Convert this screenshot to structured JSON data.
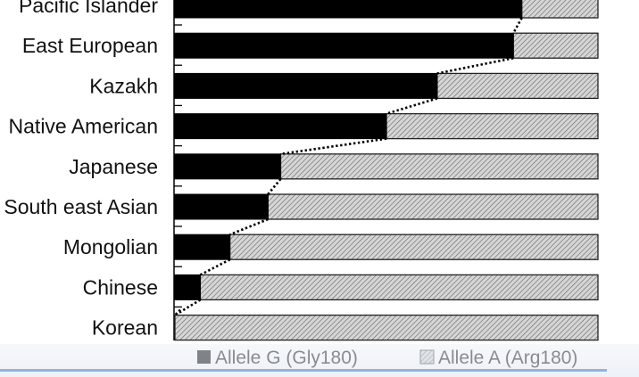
{
  "chart_data": {
    "type": "bar",
    "orientation": "horizontal",
    "stacked": true,
    "percent_stacked": true,
    "categories": [
      "Pacific Islander",
      "East European",
      "Kazakh",
      "Native American",
      "Japanese",
      "South east Asian",
      "Mongolian",
      "Chinese",
      "Korean"
    ],
    "series": [
      {
        "name": "Allele G (Gly180)",
        "values": [
          82,
          80,
          62,
          50,
          25,
          22,
          13,
          6,
          0
        ],
        "color": "#000000",
        "pattern": "solid"
      },
      {
        "name": "Allele A (Arg180)",
        "values": [
          18,
          20,
          38,
          50,
          75,
          78,
          87,
          94,
          100
        ],
        "color": "#bbbbbb",
        "pattern": "diagonal-hatch"
      }
    ],
    "xlim": [
      0,
      100
    ],
    "legend_position": "bottom",
    "trend_line": "dotted line connecting the G/A boundaries of successive bars"
  }
}
